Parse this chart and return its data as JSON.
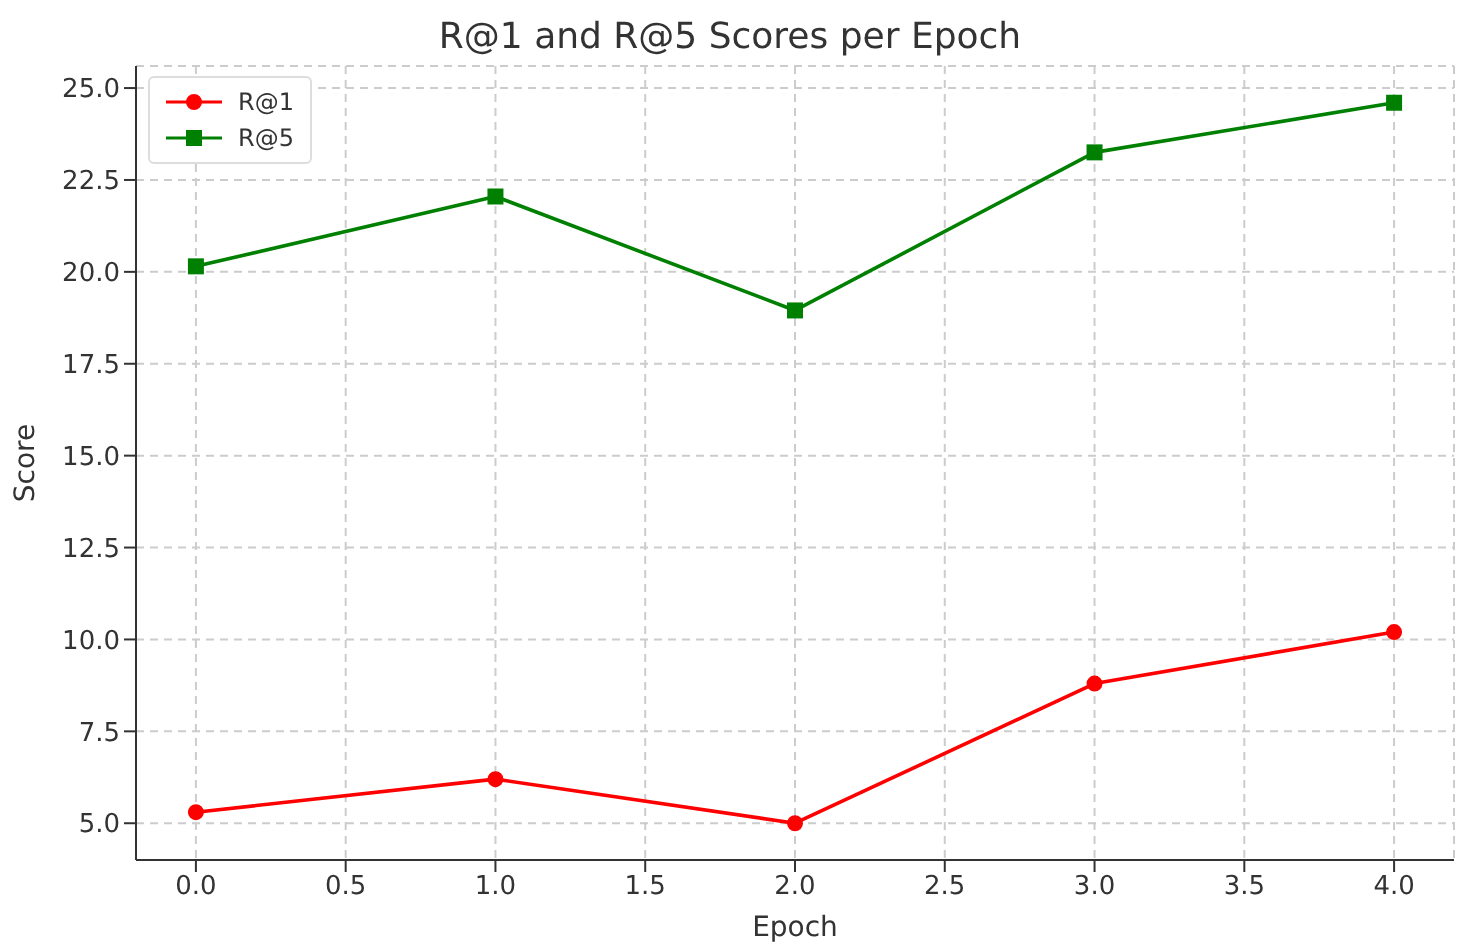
{
  "chart_data": {
    "type": "line",
    "title": "R@1 and R@5 Scores per Epoch",
    "xlabel": "Epoch",
    "ylabel": "Score",
    "x": [
      0,
      1,
      2,
      3,
      4
    ],
    "series": [
      {
        "name": "R@1",
        "color": "#ff0000",
        "marker": "circle",
        "values": [
          5.3,
          6.2,
          5.0,
          8.8,
          10.2
        ]
      },
      {
        "name": "R@5",
        "color": "#008000",
        "marker": "square",
        "values": [
          20.15,
          22.05,
          18.95,
          23.25,
          24.6
        ]
      }
    ],
    "xlim": [
      -0.2,
      4.2
    ],
    "xticks": [
      {
        "value": 0,
        "label": "0.0"
      },
      0.5,
      {
        "value": 1,
        "label": "1.0"
      },
      1.5,
      {
        "value": 2,
        "label": "2.0"
      },
      2.5,
      {
        "value": 3,
        "label": "3.0"
      },
      3.5,
      {
        "value": 4,
        "label": "4.0"
      }
    ],
    "ylim": [
      4,
      25.6
    ],
    "yticks": [
      {
        "value": 5,
        "label": "5.0"
      },
      7.5,
      {
        "value": 10,
        "label": "10.0"
      },
      12.5,
      {
        "value": 15,
        "label": "15.0"
      },
      17.5,
      {
        "value": 20,
        "label": "20.0"
      },
      22.5,
      {
        "value": 25,
        "label": "25.0"
      }
    ],
    "grid": true,
    "legend": "top left"
  }
}
